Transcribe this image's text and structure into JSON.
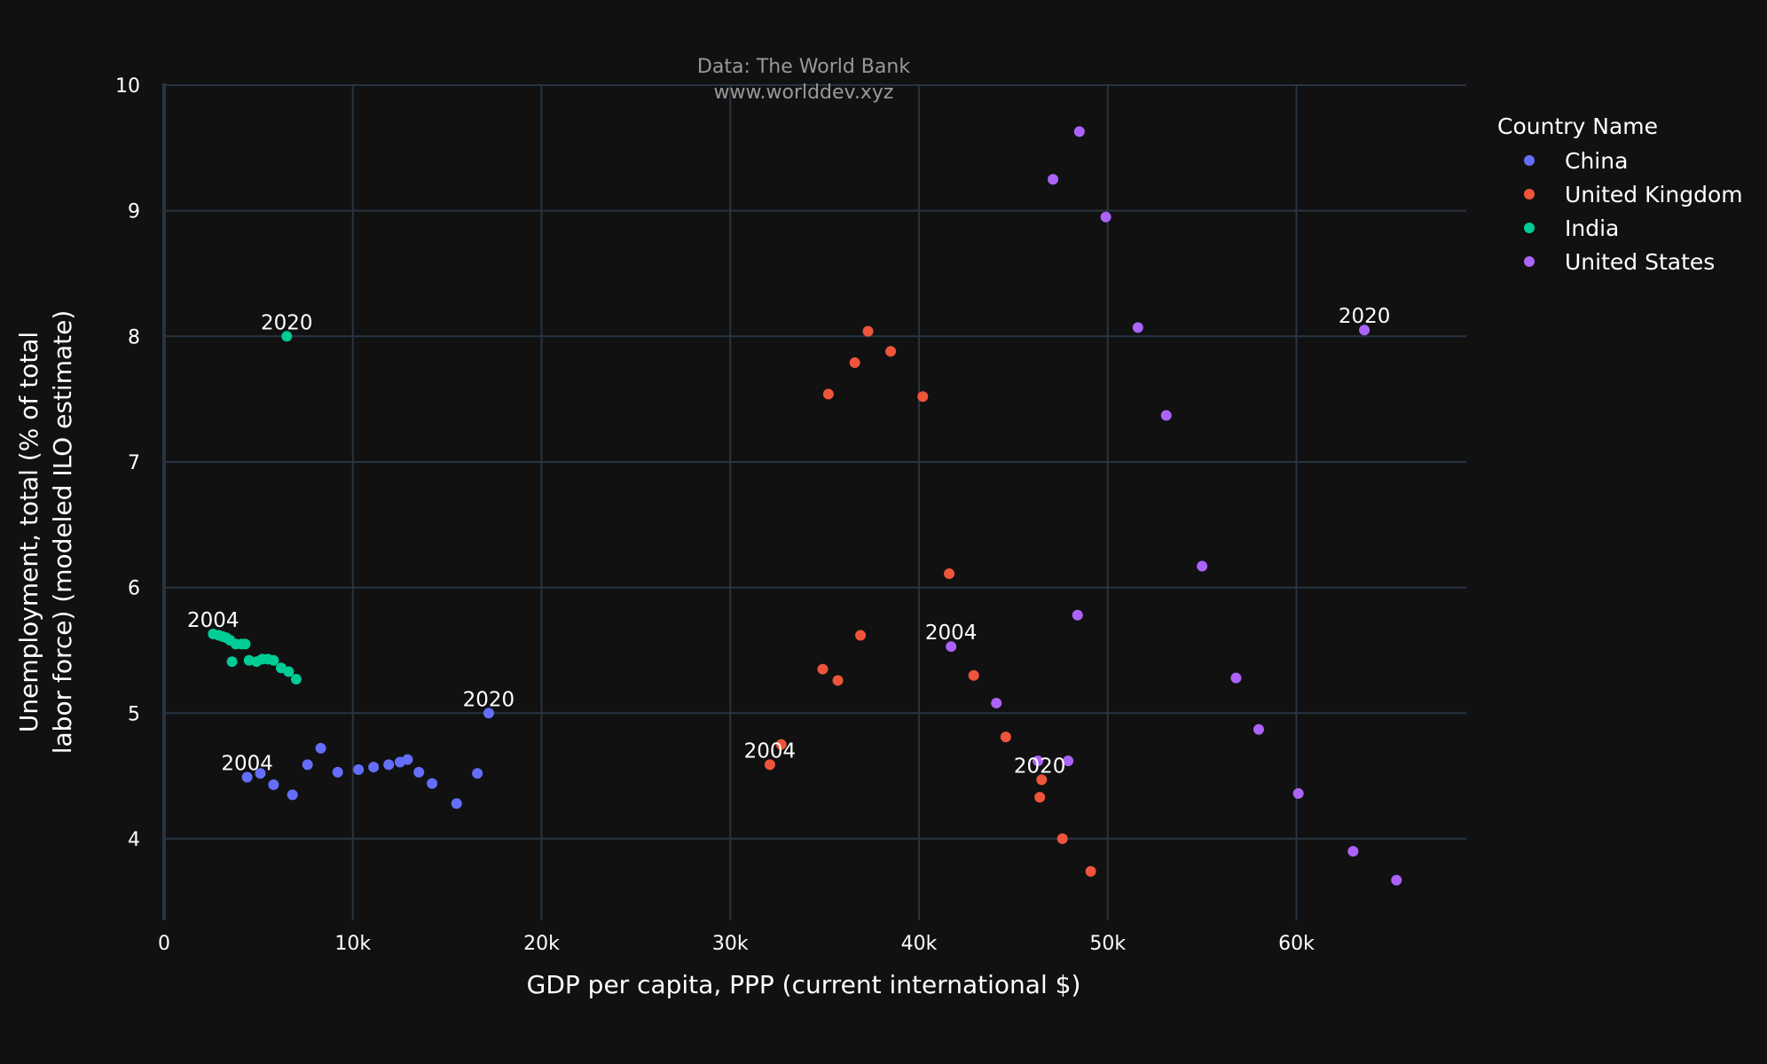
{
  "chart_data": {
    "type": "scatter",
    "source_line1": "Data: The World Bank",
    "source_line2": "www.worlddev.xyz",
    "xlabel": "GDP per capita, PPP (current international $)",
    "ylabel_line1": "Unemployment, total (% of total",
    "ylabel_line2": "labor force) (modeled ILO estimate)",
    "xlim": [
      0,
      69000
    ],
    "ylim": [
      3.35,
      10
    ],
    "x_ticks": [
      0,
      10000,
      20000,
      30000,
      40000,
      50000,
      60000
    ],
    "x_tick_labels": [
      "0",
      "10k",
      "20k",
      "30k",
      "40k",
      "50k",
      "60k"
    ],
    "y_ticks": [
      4,
      5,
      6,
      7,
      8,
      9,
      10
    ],
    "y_tick_labels": [
      "4",
      "5",
      "6",
      "7",
      "8",
      "9",
      "10"
    ],
    "grid": true,
    "legend_title": "Country Name",
    "legend_position": "top-right",
    "series": [
      {
        "name": "China",
        "color": "#636efa",
        "points": [
          [
            4400,
            4.49
          ],
          [
            5100,
            4.52
          ],
          [
            5800,
            4.43
          ],
          [
            6800,
            4.35
          ],
          [
            7600,
            4.59
          ],
          [
            8300,
            4.72
          ],
          [
            9200,
            4.53
          ],
          [
            10300,
            4.55
          ],
          [
            11100,
            4.57
          ],
          [
            11900,
            4.59
          ],
          [
            12500,
            4.61
          ],
          [
            12900,
            4.63
          ],
          [
            13500,
            4.53
          ],
          [
            14200,
            4.44
          ],
          [
            15500,
            4.28
          ],
          [
            16600,
            4.52
          ],
          [
            17200,
            5.0
          ]
        ]
      },
      {
        "name": "United Kingdom",
        "color": "#ef553b",
        "points": [
          [
            32100,
            4.59
          ],
          [
            32700,
            4.75
          ],
          [
            34900,
            5.35
          ],
          [
            35700,
            5.26
          ],
          [
            36900,
            5.62
          ],
          [
            35200,
            7.54
          ],
          [
            36600,
            7.79
          ],
          [
            37300,
            8.04
          ],
          [
            38500,
            7.88
          ],
          [
            40200,
            7.52
          ],
          [
            41600,
            6.11
          ],
          [
            42900,
            5.3
          ],
          [
            44600,
            4.81
          ],
          [
            46500,
            4.47
          ],
          [
            46400,
            4.33
          ],
          [
            47600,
            4.0
          ],
          [
            49100,
            3.74
          ]
        ]
      },
      {
        "name": "India",
        "color": "#00cc96",
        "points": [
          [
            2600,
            5.63
          ],
          [
            2900,
            5.62
          ],
          [
            3100,
            5.61
          ],
          [
            3300,
            5.6
          ],
          [
            3500,
            5.58
          ],
          [
            3800,
            5.55
          ],
          [
            4100,
            5.55
          ],
          [
            4300,
            5.55
          ],
          [
            3600,
            5.41
          ],
          [
            4500,
            5.42
          ],
          [
            4900,
            5.41
          ],
          [
            5200,
            5.43
          ],
          [
            5500,
            5.43
          ],
          [
            5800,
            5.42
          ],
          [
            6200,
            5.36
          ],
          [
            6600,
            5.33
          ],
          [
            7000,
            5.27
          ],
          [
            6500,
            8.0
          ]
        ]
      },
      {
        "name": "United States",
        "color": "#ab63fa",
        "points": [
          [
            41700,
            5.53
          ],
          [
            44100,
            5.08
          ],
          [
            46300,
            4.62
          ],
          [
            47900,
            4.62
          ],
          [
            48400,
            5.78
          ],
          [
            47100,
            9.25
          ],
          [
            48500,
            9.63
          ],
          [
            49900,
            8.95
          ],
          [
            51600,
            8.07
          ],
          [
            53100,
            7.37
          ],
          [
            55000,
            6.17
          ],
          [
            56800,
            5.28
          ],
          [
            58000,
            4.87
          ],
          [
            60100,
            4.36
          ],
          [
            63000,
            3.9
          ],
          [
            65300,
            3.67
          ],
          [
            63600,
            8.05
          ]
        ]
      }
    ],
    "annotations": [
      {
        "text": "2004",
        "x": 4400,
        "y": 4.49
      },
      {
        "text": "2020",
        "x": 17200,
        "y": 5.0
      },
      {
        "text": "2004",
        "x": 2600,
        "y": 5.63
      },
      {
        "text": "2020",
        "x": 6500,
        "y": 8.0
      },
      {
        "text": "2004",
        "x": 32100,
        "y": 4.59
      },
      {
        "text": "2020",
        "x": 46400,
        "y": 4.47
      },
      {
        "text": "2004",
        "x": 41700,
        "y": 5.53
      },
      {
        "text": "2020",
        "x": 63600,
        "y": 8.05
      }
    ]
  }
}
